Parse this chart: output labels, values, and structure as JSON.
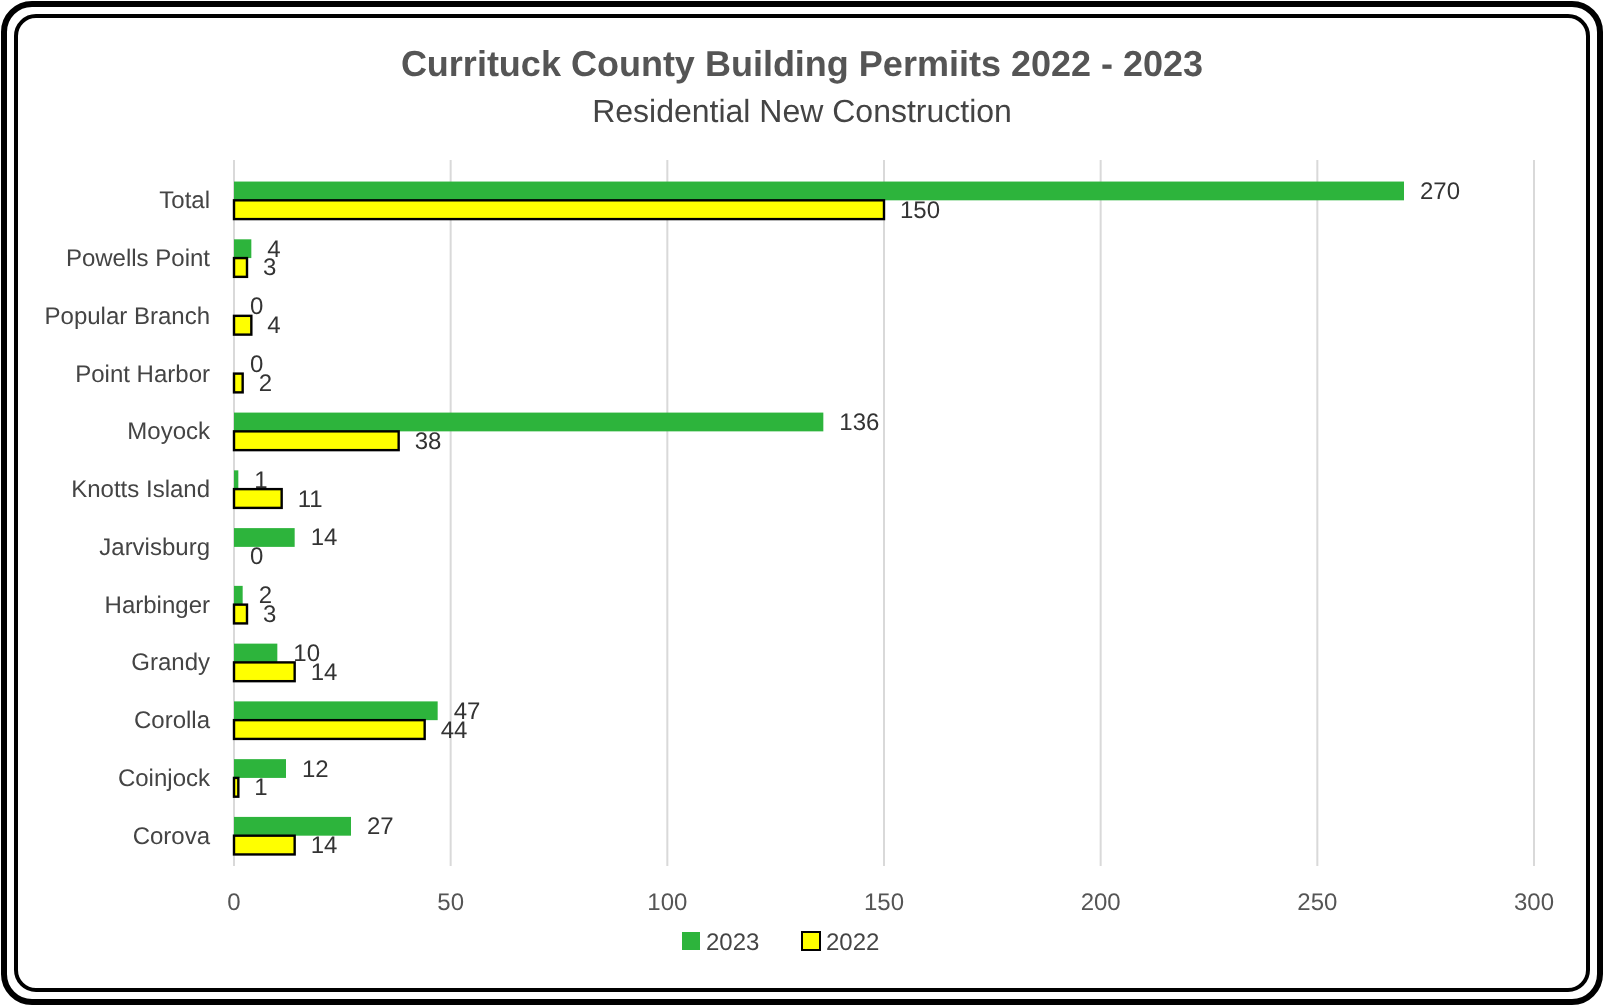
{
  "chart_data": {
    "type": "bar",
    "orientation": "horizontal",
    "title": "Currituck County Building Permiits 2022 - 2023",
    "subtitle": "Residential New Construction",
    "categories": [
      "Total",
      "Powells Point",
      "Popular Branch",
      "Point Harbor",
      "Moyock",
      "Knotts Island",
      "Jarvisburg",
      "Harbinger",
      "Grandy",
      "Corolla",
      "Coinjock",
      "Corova"
    ],
    "series": [
      {
        "name": "2023",
        "color": "#2db43c",
        "values": [
          270,
          4,
          0,
          0,
          136,
          1,
          14,
          2,
          10,
          47,
          12,
          27
        ]
      },
      {
        "name": "2022",
        "color": "#ffff00",
        "values": [
          150,
          3,
          4,
          2,
          38,
          11,
          0,
          3,
          14,
          44,
          1,
          14
        ]
      }
    ],
    "xlim": [
      0,
      300
    ],
    "xticks": [
      0,
      50,
      100,
      150,
      200,
      250,
      300
    ],
    "grid": "x",
    "legend": "bottom",
    "data_labels": true
  }
}
